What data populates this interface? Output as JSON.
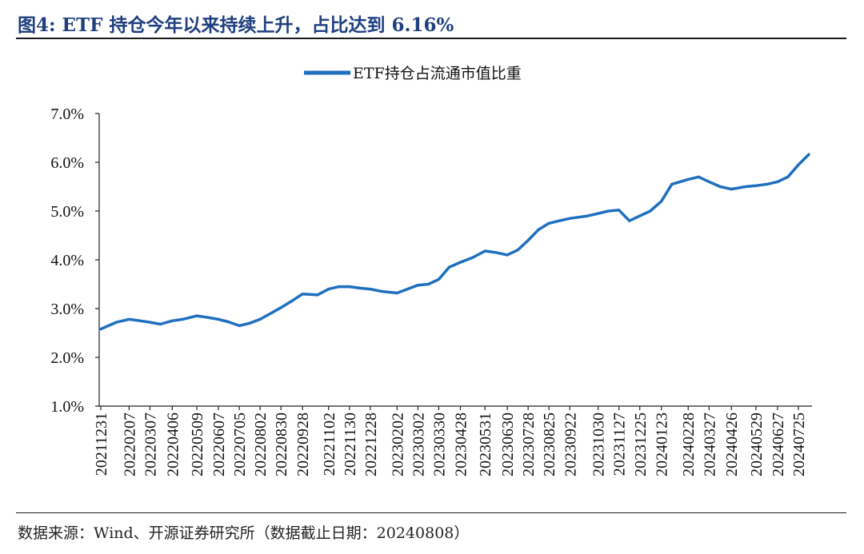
{
  "figure": {
    "title": "图4: ETF 持仓今年以来持续上升，占比达到 6.16%",
    "source": "数据来源：Wind、开源证券研究所（数据截止日期：20240808）"
  },
  "chart_data": {
    "type": "line",
    "title": "",
    "xlabel": "",
    "ylabel": "",
    "ylim": [
      0.01,
      0.07
    ],
    "y_ticks": [
      "1.0%",
      "2.0%",
      "3.0%",
      "4.0%",
      "5.0%",
      "6.0%",
      "7.0%"
    ],
    "x_tick_labels": [
      "20211231",
      "20220207",
      "20220307",
      "20220406",
      "20220509",
      "20220607",
      "20220705",
      "20220802",
      "20220830",
      "20220928",
      "20221102",
      "20221130",
      "20221228",
      "20230202",
      "20230302",
      "20230330",
      "20230428",
      "20230531",
      "20230630",
      "20230728",
      "20230825",
      "20230922",
      "20231030",
      "20231127",
      "20231225",
      "20240123",
      "20240228",
      "20240327",
      "20240426",
      "20240529",
      "20240627",
      "20240725"
    ],
    "legend": {
      "position": "top-center"
    },
    "grid": false,
    "line_color": "#1f6fbf",
    "series": [
      {
        "name": "ETF持仓占流通市值比重",
        "x": [
          "20211231",
          "20220121",
          "20220207",
          "20220222",
          "20220307",
          "20220321",
          "20220406",
          "20220420",
          "20220509",
          "20220523",
          "20220607",
          "20220620",
          "20220705",
          "20220719",
          "20220802",
          "20220816",
          "20220830",
          "20220913",
          "20220928",
          "20221018",
          "20221102",
          "20221116",
          "20221130",
          "20221214",
          "20221228",
          "20230113",
          "20230202",
          "20230216",
          "20230302",
          "20230316",
          "20230330",
          "20230413",
          "20230428",
          "20230515",
          "20230531",
          "20230615",
          "20230630",
          "20230714",
          "20230728",
          "20230811",
          "20230825",
          "20230908",
          "20230922",
          "20231016",
          "20231030",
          "20231113",
          "20231127",
          "20231211",
          "20231225",
          "20240108",
          "20240123",
          "20240206",
          "20240228",
          "20240313",
          "20240327",
          "20240411",
          "20240426",
          "20240515",
          "20240529",
          "20240613",
          "20240627",
          "20240711",
          "20240725",
          "20240808"
        ],
        "values": [
          0.0258,
          0.0272,
          0.0278,
          0.0275,
          0.0272,
          0.0268,
          0.0275,
          0.0278,
          0.0285,
          0.0282,
          0.0278,
          0.0273,
          0.0265,
          0.027,
          0.0278,
          0.029,
          0.0302,
          0.0315,
          0.033,
          0.0328,
          0.034,
          0.0345,
          0.0345,
          0.0342,
          0.034,
          0.0335,
          0.0332,
          0.034,
          0.0348,
          0.035,
          0.036,
          0.0385,
          0.0395,
          0.0405,
          0.0418,
          0.0415,
          0.041,
          0.042,
          0.044,
          0.0462,
          0.0475,
          0.048,
          0.0485,
          0.049,
          0.0495,
          0.05,
          0.0502,
          0.048,
          0.049,
          0.05,
          0.052,
          0.0555,
          0.0565,
          0.057,
          0.056,
          0.055,
          0.0545,
          0.055,
          0.0552,
          0.0555,
          0.056,
          0.057,
          0.0595,
          0.0616
        ]
      }
    ]
  }
}
